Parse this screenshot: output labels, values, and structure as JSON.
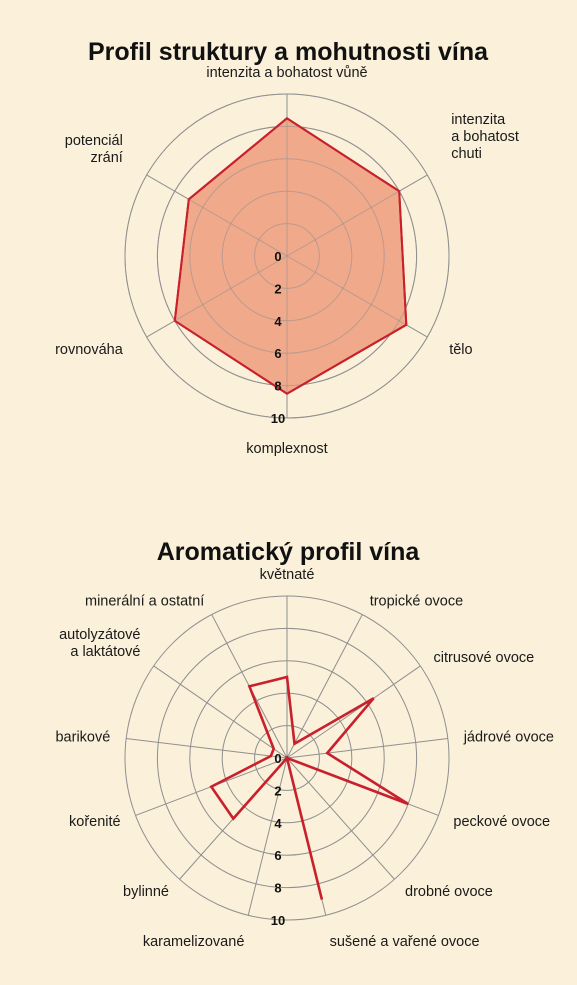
{
  "chart_data": [
    {
      "type": "radar",
      "title": "Profil struktury a mohutnosti vína",
      "axes": [
        [
          "intenzita a bohatost vůně"
        ],
        [
          "intenzita",
          "a bohatost",
          "chuti"
        ],
        [
          "tělo"
        ],
        [
          "komplexnost"
        ],
        [
          "rovnováha"
        ],
        [
          "potenciál",
          "zrání"
        ]
      ],
      "values": [
        8.5,
        8,
        8.5,
        8.5,
        8,
        7
      ],
      "range": [
        0,
        10
      ],
      "ticks": [
        "0",
        "2",
        "4",
        "6",
        "8",
        "10"
      ],
      "fill_color": "#f0a98a",
      "line_color": "#c8202c"
    },
    {
      "type": "radar",
      "title": "Aromatický profil vína",
      "axes": [
        [
          "květnaté"
        ],
        [
          "tropické ovoce"
        ],
        [
          "citrusové ovoce"
        ],
        [
          "jádrové ovoce"
        ],
        [
          "peckové ovoce"
        ],
        [
          "drobné ovoce"
        ],
        [
          "sušené a vařené ovoce"
        ],
        [
          "karamelizované"
        ],
        [
          "bylinné"
        ],
        [
          "kořenité"
        ],
        [
          "barikové"
        ],
        [
          "autolyzátové",
          "a laktátové"
        ],
        [
          "minerální a ostatní"
        ]
      ],
      "values": [
        5,
        1,
        6.5,
        2.5,
        8,
        0,
        9,
        0,
        5,
        5,
        1,
        1,
        5
      ],
      "range": [
        0,
        10
      ],
      "ticks": [
        "0",
        "2",
        "4",
        "6",
        "8",
        "10"
      ],
      "fill_color": "none",
      "line_color": "#c8202c"
    }
  ]
}
